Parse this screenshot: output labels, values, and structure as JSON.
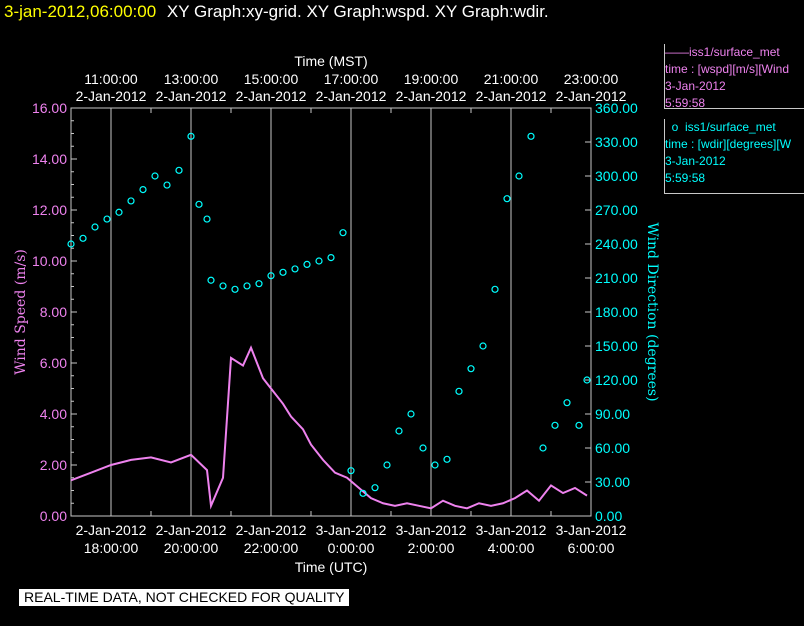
{
  "header": {
    "timestamp": "3-jan-2012,06:00:00",
    "graph_titles": "XY Graph:xy-grid.  XY Graph:wspd.  XY Graph:wdir."
  },
  "legend": {
    "series1": {
      "name": "iss1/surface_met",
      "line1": "time : [wspd][m/s][Wind",
      "line2": "3-Jan-2012",
      "line3": "5:59:58"
    },
    "series2": {
      "name": "iss1/surface_met",
      "line1": "time : [wdir][degrees][W",
      "line2": "3-Jan-2012",
      "line3": "5:59:58"
    }
  },
  "footer": {
    "quality_note": "REAL-TIME DATA, NOT CHECKED FOR QUALITY"
  },
  "colors": {
    "wspd": "#ee82ee",
    "wdir": "#00ffff",
    "header_time": "#ffff00",
    "axis": "#c8c8c8"
  },
  "chart_data": {
    "type": "scatter",
    "x_bottom_label": "Time (UTC)",
    "x_top_label": "Time (MST)",
    "ylabel_left": "Wind Speed (m/s)",
    "ylabel_right": "Wind Direction (degrees)",
    "ylim_left": [
      0,
      16
    ],
    "ylim_right": [
      0,
      360
    ],
    "xlim_utc_hours": [
      17,
      30
    ],
    "grid": "vertical lines at each bottom major tick",
    "yticks_left": [
      "0.00",
      "2.00",
      "4.00",
      "6.00",
      "8.00",
      "10.00",
      "12.00",
      "14.00",
      "16.00"
    ],
    "yticks_right": [
      "0.00",
      "30.00",
      "60.00",
      "90.00",
      "120.00",
      "150.00",
      "180.00",
      "210.00",
      "240.00",
      "270.00",
      "300.00",
      "330.00",
      "360.00"
    ],
    "xticks_bottom": [
      {
        "date": "2-Jan-2012",
        "time": "18:00:00"
      },
      {
        "date": "2-Jan-2012",
        "time": "20:00:00"
      },
      {
        "date": "2-Jan-2012",
        "time": "22:00:00"
      },
      {
        "date": "3-Jan-2012",
        "time": "0:00:00"
      },
      {
        "date": "3-Jan-2012",
        "time": "2:00:00"
      },
      {
        "date": "3-Jan-2012",
        "time": "4:00:00"
      },
      {
        "date": "3-Jan-2012",
        "time": "6:00:00"
      }
    ],
    "xticks_top": [
      {
        "time": "11:00:00",
        "date": "2-Jan-2012"
      },
      {
        "time": "13:00:00",
        "date": "2-Jan-2012"
      },
      {
        "time": "15:00:00",
        "date": "2-Jan-2012"
      },
      {
        "time": "17:00:00",
        "date": "2-Jan-2012"
      },
      {
        "time": "19:00:00",
        "date": "2-Jan-2012"
      },
      {
        "time": "21:00:00",
        "date": "2-Jan-2012"
      },
      {
        "time": "23:00:00",
        "date": "2-Jan-2012"
      }
    ],
    "series": [
      {
        "name": "iss1/surface_met",
        "axis": "left",
        "style": "line",
        "x_utc_hours": [
          17.0,
          17.5,
          18.0,
          18.5,
          19.0,
          19.5,
          20.0,
          20.4,
          20.5,
          20.8,
          21.0,
          21.3,
          21.5,
          21.8,
          22.0,
          22.3,
          22.5,
          22.8,
          23.0,
          23.3,
          23.6,
          23.9,
          24.2,
          24.5,
          24.8,
          25.1,
          25.4,
          25.7,
          26.0,
          26.3,
          26.6,
          26.9,
          27.2,
          27.5,
          27.8,
          28.1,
          28.4,
          28.7,
          29.0,
          29.3,
          29.6,
          29.9
        ],
        "values": [
          1.4,
          1.7,
          2.0,
          2.2,
          2.3,
          2.1,
          2.4,
          1.8,
          0.4,
          1.5,
          6.2,
          5.9,
          6.6,
          5.4,
          5.0,
          4.4,
          3.9,
          3.4,
          2.8,
          2.2,
          1.7,
          1.5,
          1.1,
          0.7,
          0.5,
          0.4,
          0.5,
          0.4,
          0.3,
          0.6,
          0.4,
          0.3,
          0.5,
          0.4,
          0.5,
          0.7,
          1.0,
          0.6,
          1.2,
          0.9,
          1.1,
          0.8
        ]
      },
      {
        "name": "iss1/surface_met",
        "axis": "right",
        "style": "circles",
        "x_utc_hours": [
          17.0,
          17.3,
          17.6,
          17.9,
          18.2,
          18.5,
          18.8,
          19.1,
          19.4,
          19.7,
          20.0,
          20.2,
          20.4,
          20.5,
          20.8,
          21.1,
          21.4,
          21.7,
          22.0,
          22.3,
          22.6,
          22.9,
          23.2,
          23.5,
          23.8,
          24.0,
          24.3,
          24.6,
          24.9,
          25.2,
          25.5,
          25.8,
          26.1,
          26.4,
          26.7,
          27.0,
          27.3,
          27.6,
          27.9,
          28.2,
          28.5,
          28.8,
          29.1,
          29.4,
          29.7,
          29.9
        ],
        "values": [
          240,
          245,
          255,
          262,
          268,
          278,
          288,
          300,
          292,
          305,
          335,
          275,
          262,
          208,
          203,
          200,
          203,
          205,
          212,
          215,
          218,
          222,
          225,
          228,
          250,
          40,
          20,
          25,
          45,
          75,
          90,
          60,
          45,
          50,
          110,
          130,
          150,
          200,
          280,
          300,
          335,
          60,
          80,
          100,
          80,
          120
        ]
      }
    ]
  }
}
